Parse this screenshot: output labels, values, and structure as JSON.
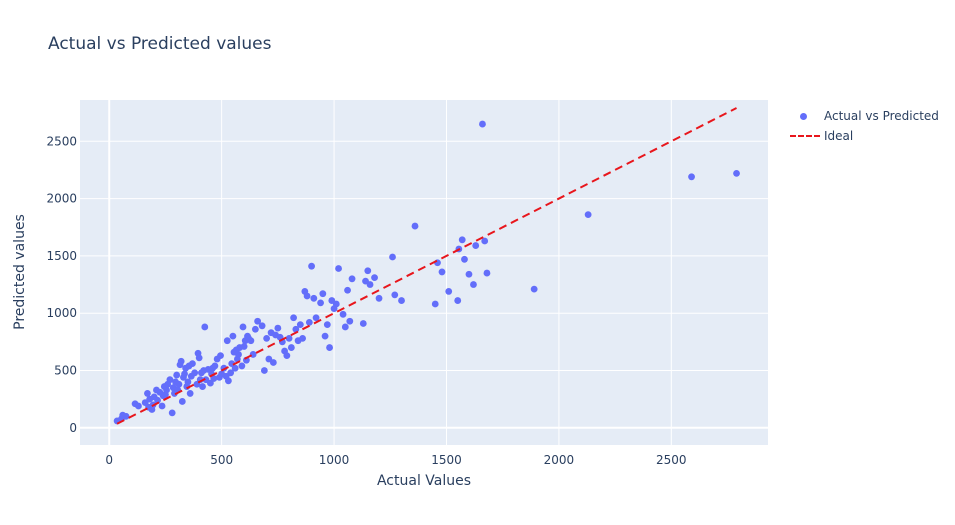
{
  "chart_data": {
    "type": "scatter",
    "title": "Actual vs Predicted values",
    "xlabel": "Actual Values",
    "ylabel": "Predicted values",
    "xlim": [
      -130,
      2930
    ],
    "ylim": [
      -150,
      2860
    ],
    "xticks": [
      0,
      500,
      1000,
      1500,
      2000,
      2500
    ],
    "yticks": [
      0,
      500,
      1000,
      1500,
      2000,
      2500
    ],
    "grid": true,
    "legend_position": "top-right",
    "series": [
      {
        "name": "Actual vs Predicted",
        "type": "scatter",
        "color": "#636efa",
        "x": [
          35,
          55,
          60,
          75,
          115,
          130,
          160,
          170,
          175,
          180,
          190,
          195,
          200,
          210,
          215,
          225,
          235,
          240,
          245,
          250,
          255,
          260,
          270,
          280,
          285,
          290,
          295,
          300,
          305,
          310,
          315,
          320,
          325,
          330,
          335,
          340,
          345,
          350,
          355,
          360,
          365,
          370,
          380,
          390,
          395,
          400,
          405,
          410,
          415,
          420,
          425,
          430,
          440,
          450,
          455,
          460,
          465,
          470,
          480,
          490,
          495,
          500,
          510,
          520,
          525,
          530,
          540,
          545,
          550,
          555,
          560,
          565,
          570,
          575,
          580,
          590,
          595,
          600,
          605,
          610,
          615,
          620,
          630,
          640,
          650,
          660,
          680,
          690,
          700,
          710,
          720,
          730,
          740,
          750,
          760,
          770,
          780,
          790,
          800,
          810,
          820,
          830,
          840,
          850,
          860,
          870,
          880,
          890,
          900,
          910,
          920,
          940,
          950,
          960,
          970,
          980,
          990,
          1000,
          1010,
          1020,
          1040,
          1050,
          1060,
          1070,
          1080,
          1130,
          1140,
          1150,
          1160,
          1180,
          1200,
          1260,
          1270,
          1300,
          1360,
          1450,
          1460,
          1480,
          1510,
          1550,
          1555,
          1570,
          1580,
          1600,
          1620,
          1630,
          1660,
          1670,
          1680,
          1890,
          2130,
          2590,
          2790
        ],
        "y": [
          60,
          80,
          110,
          100,
          210,
          190,
          220,
          300,
          180,
          250,
          160,
          200,
          270,
          330,
          240,
          310,
          190,
          280,
          360,
          290,
          330,
          380,
          420,
          130,
          350,
          300,
          400,
          460,
          330,
          380,
          550,
          580,
          230,
          440,
          470,
          520,
          360,
          400,
          540,
          300,
          450,
          560,
          480,
          380,
          650,
          610,
          420,
          480,
          360,
          500,
          880,
          420,
          510,
          390,
          470,
          520,
          430,
          540,
          600,
          440,
          630,
          470,
          520,
          450,
          760,
          410,
          480,
          560,
          800,
          660,
          520,
          680,
          600,
          640,
          700,
          540,
          880,
          710,
          760,
          590,
          800,
          780,
          760,
          640,
          860,
          930,
          890,
          500,
          780,
          600,
          830,
          570,
          810,
          870,
          790,
          750,
          670,
          630,
          780,
          700,
          960,
          860,
          760,
          900,
          780,
          1190,
          1150,
          920,
          1410,
          1130,
          960,
          1090,
          1170,
          800,
          900,
          700,
          1110,
          1040,
          1080,
          1390,
          990,
          880,
          1200,
          930,
          1300,
          910,
          1280,
          1370,
          1250,
          1310,
          1130,
          1490,
          1160,
          1110,
          1760,
          1080,
          1440,
          1360,
          1190,
          1110,
          1560,
          1640,
          1470,
          1340,
          1250,
          1590,
          2650,
          1630,
          1350,
          1210,
          1860,
          2190,
          2220
        ]
      },
      {
        "name": "Ideal",
        "type": "line",
        "dash": "dash",
        "color": "#e8161c",
        "x": [
          35,
          2790
        ],
        "y": [
          35,
          2790
        ]
      }
    ]
  }
}
